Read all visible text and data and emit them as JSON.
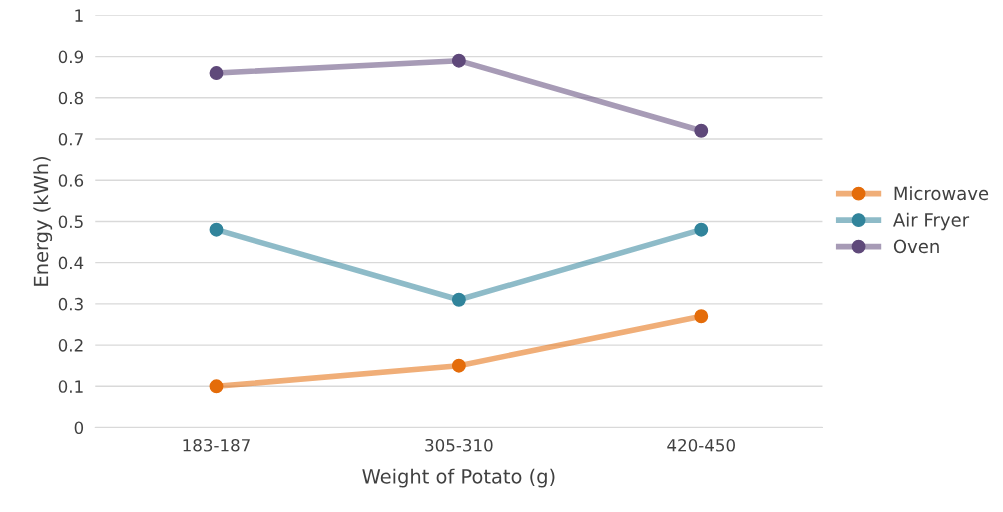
{
  "chart_data": {
    "type": "line",
    "xlabel": "Weight of Potato (g)",
    "ylabel": "Energy (kWh)",
    "categories": [
      "183-187",
      "305-310",
      "420-450"
    ],
    "series": [
      {
        "name": "Microwave",
        "color": "#e46c0a",
        "values": [
          0.1,
          0.15,
          0.27
        ]
      },
      {
        "name": "Air Fryer",
        "color": "#31849b",
        "values": [
          0.48,
          0.31,
          0.48
        ]
      },
      {
        "name": "Oven",
        "color": "#5f497a",
        "values": [
          0.86,
          0.89,
          0.72
        ]
      }
    ],
    "ylim": [
      0,
      1
    ],
    "yticks": [
      0,
      0.1,
      0.2,
      0.3,
      0.4,
      0.5,
      0.6,
      0.7,
      0.8,
      0.9,
      1
    ],
    "grid": "y",
    "legend": "right",
    "marker": "circle",
    "line_style": "solid"
  }
}
